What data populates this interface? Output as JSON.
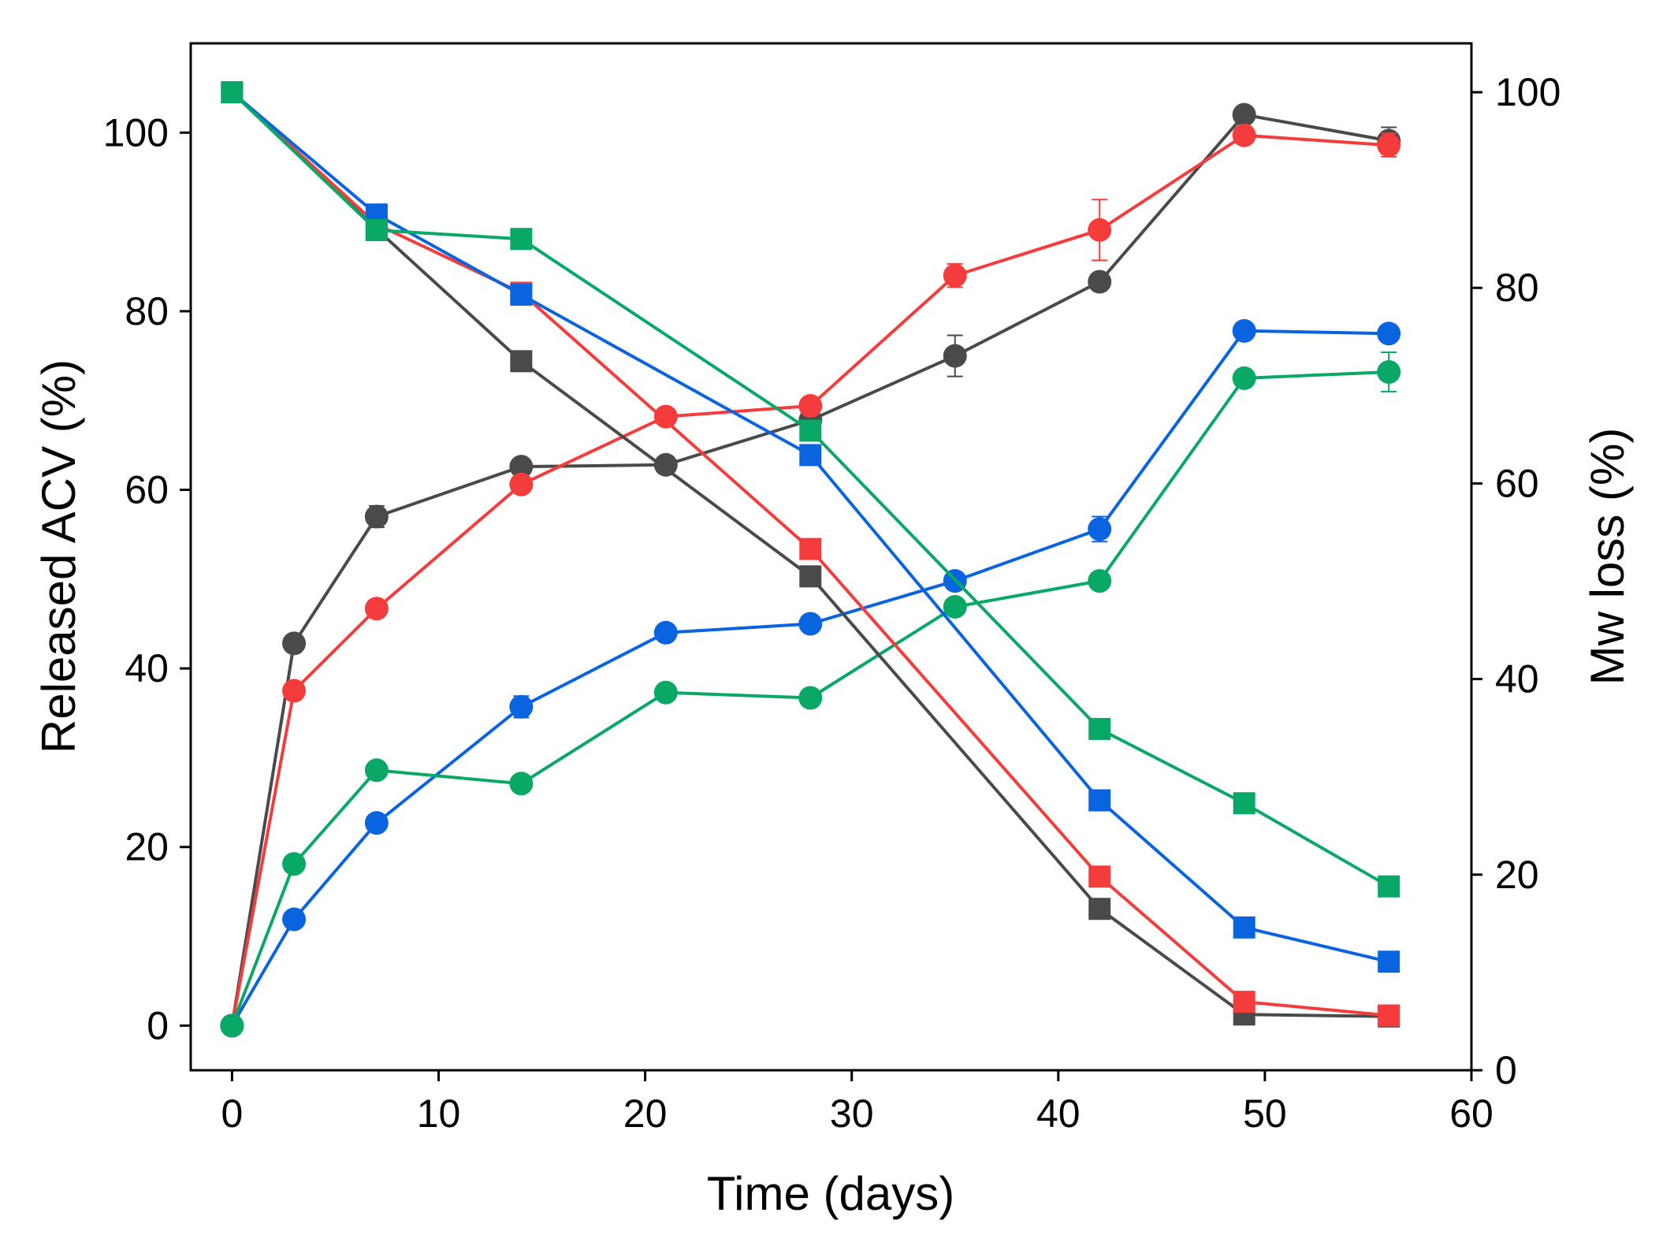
{
  "chart_data": {
    "type": "line",
    "xlabel": "Time (days)",
    "ylabel_left": "Released ACV (%)",
    "ylabel_right": "Mw loss (%)",
    "xlim": [
      -2,
      60
    ],
    "ylim_left": [
      -5,
      110
    ],
    "ylim_right": [
      0,
      105
    ],
    "x_ticks": [
      0,
      10,
      20,
      30,
      40,
      50,
      60
    ],
    "y_left_ticks": [
      0,
      20,
      40,
      60,
      80,
      100
    ],
    "y_right_ticks": [
      0,
      20,
      40,
      60,
      80,
      100
    ],
    "grid": false,
    "legend": "none",
    "series": [
      {
        "color": "#4a4a4a",
        "marker": "circle",
        "axis": "left",
        "metric": "released",
        "x": [
          0,
          3,
          7,
          14,
          21,
          28,
          35,
          42,
          49,
          56
        ],
        "y": [
          0,
          42.8,
          57,
          62.6,
          62.8,
          67.8,
          75,
          83.3,
          102,
          99.1
        ],
        "err": [
          0,
          0.3,
          1.2,
          0.6,
          0.5,
          0.6,
          2.3,
          0.6,
          0.4,
          1.5
        ]
      },
      {
        "color": "#f53c3c",
        "marker": "circle",
        "axis": "left",
        "metric": "released",
        "x": [
          0,
          3,
          7,
          14,
          21,
          28,
          35,
          42,
          49,
          56
        ],
        "y": [
          0,
          37.5,
          46.7,
          60.6,
          68.2,
          69.4,
          84,
          89.1,
          99.7,
          98.6
        ],
        "err": [
          0,
          0.3,
          0.5,
          0.6,
          0.6,
          0.6,
          1.3,
          3.4,
          0.6,
          1.3
        ]
      },
      {
        "color": "#0a64e0",
        "marker": "circle",
        "axis": "left",
        "metric": "released",
        "x": [
          0,
          3,
          7,
          14,
          21,
          28,
          35,
          42,
          49,
          56
        ],
        "y": [
          0,
          11.9,
          22.7,
          35.7,
          44,
          45,
          49.8,
          55.6,
          77.8,
          77.5
        ],
        "err": [
          0,
          0.3,
          0.4,
          1.2,
          0.4,
          0.4,
          0.4,
          1.4,
          0.8,
          0.9
        ]
      },
      {
        "color": "#0aa866",
        "marker": "circle",
        "axis": "left",
        "metric": "released",
        "x": [
          0,
          3,
          7,
          14,
          21,
          28,
          35,
          42,
          49,
          56
        ],
        "y": [
          0,
          18.1,
          28.6,
          27.1,
          37.3,
          36.7,
          46.9,
          49.8,
          72.5,
          73.2
        ],
        "err": [
          0,
          0.3,
          0.5,
          0.4,
          0.4,
          0.4,
          0.4,
          0.4,
          0.5,
          2.2
        ]
      },
      {
        "color": "#4a4a4a",
        "marker": "square",
        "axis": "right",
        "metric": "mw",
        "x": [
          0,
          7,
          14,
          28,
          42,
          49,
          56
        ],
        "y": [
          100,
          86,
          72.5,
          50.5,
          16.5,
          5.7,
          5.5
        ]
      },
      {
        "color": "#f53c3c",
        "marker": "square",
        "axis": "right",
        "metric": "mw",
        "x": [
          0,
          7,
          14,
          28,
          42,
          49,
          56
        ],
        "y": [
          100,
          86.5,
          79.5,
          53.3,
          19.8,
          7,
          5.6
        ]
      },
      {
        "color": "#0a64e0",
        "marker": "square",
        "axis": "right",
        "metric": "mw",
        "x": [
          0,
          7,
          14,
          28,
          42,
          49,
          56
        ],
        "y": [
          100,
          87.5,
          79.3,
          62.9,
          27.6,
          14.6,
          11.1
        ]
      },
      {
        "color": "#0aa866",
        "marker": "square",
        "axis": "right",
        "metric": "mw",
        "x": [
          0,
          7,
          14,
          28,
          42,
          49,
          56
        ],
        "y": [
          100,
          85.9,
          85,
          65.4,
          34.9,
          27.3,
          18.8
        ]
      }
    ]
  }
}
